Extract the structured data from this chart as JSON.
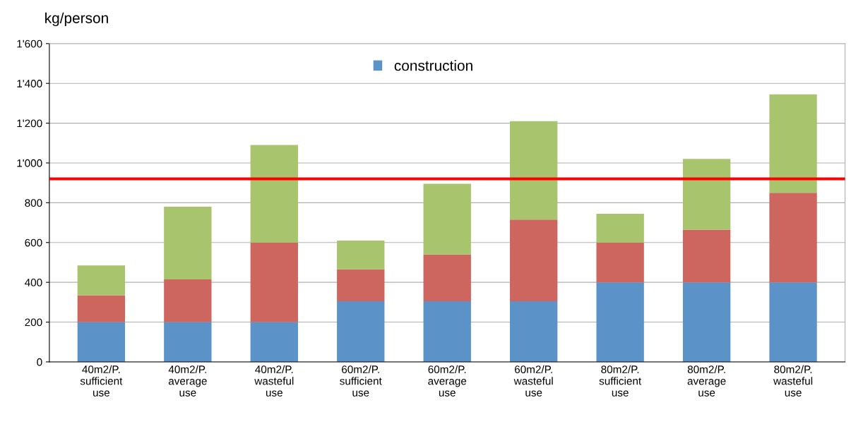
{
  "chart_data": {
    "type": "bar",
    "stacked": true,
    "ylabel": "kg/person",
    "categories": [
      "40m2/P.\nsufficient\nuse",
      "40m2/P.\naverage\nuse",
      "40m2/P.\nwasteful\nuse",
      "60m2/P.\nsufficient\nuse",
      "60m2/P.\naverage\nuse",
      "60m2/P.\nwasteful\nuse",
      "80m2/P.\nsufficient\nuse",
      "80m2/P.\naverage\nuse",
      "80m2/P.\nwasteful\nuse"
    ],
    "series": [
      {
        "name": "construction",
        "color": "#5b93c9",
        "values": [
          200,
          200,
          200,
          305,
          305,
          305,
          400,
          400,
          400
        ]
      },
      {
        "color": "#cd665f",
        "values": [
          135,
          215,
          400,
          160,
          235,
          410,
          200,
          265,
          450
        ]
      },
      {
        "color": "#a8c46c",
        "values": [
          150,
          365,
          490,
          145,
          355,
          495,
          145,
          355,
          495
        ]
      }
    ],
    "ylim": [
      0,
      1600
    ],
    "yticks": [
      0,
      200,
      400,
      600,
      800,
      {
        "value": 1000,
        "label": "1'000"
      },
      {
        "value": 1200,
        "label": "1'200"
      },
      {
        "value": 1400,
        "label": "1'400"
      },
      {
        "value": 1600,
        "label": "1'600"
      }
    ],
    "ref_lines": [
      {
        "axis": "y",
        "value": 920,
        "color": "#ff0000",
        "line_style": "solid"
      }
    ],
    "grid": "y",
    "legend": "top"
  }
}
